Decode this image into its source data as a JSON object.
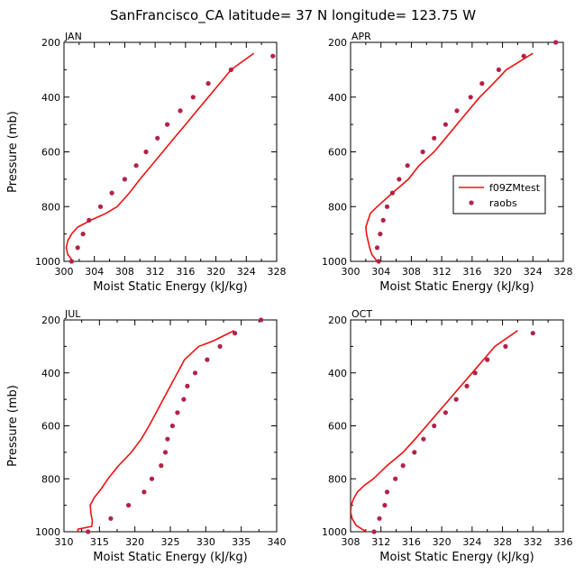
{
  "suptitle": "SanFrancisco_CA  latitude= 37 N longitude= 123.75 W",
  "colors": {
    "model": "#ee1111",
    "obs": "#b22248"
  },
  "legend": {
    "model": "f09ZMtest",
    "obs": "raobs"
  },
  "chart_data": [
    {
      "type": "line",
      "label": "JAN",
      "xlabel": "Moist Static Energy (kJ/kg)",
      "ylabel": "Pressure (mb)",
      "xlim": [
        300,
        328
      ],
      "ylim": [
        1000,
        200
      ],
      "xticks": [
        300,
        304,
        308,
        312,
        316,
        320,
        324,
        328
      ],
      "yticks": [
        200,
        400,
        600,
        800,
        1000
      ],
      "series": [
        {
          "name": "f09ZMtest",
          "style": "line",
          "points": [
            [
              302.0,
              1010
            ],
            [
              301.2,
              1000
            ],
            [
              300.5,
              975
            ],
            [
              300.3,
              950
            ],
            [
              300.5,
              925
            ],
            [
              301.0,
              900
            ],
            [
              301.8,
              875
            ],
            [
              303.5,
              850
            ],
            [
              305.5,
              825
            ],
            [
              307.0,
              800
            ],
            [
              308.6,
              750
            ],
            [
              310.0,
              700
            ],
            [
              311.5,
              650
            ],
            [
              313.0,
              600
            ],
            [
              314.5,
              550
            ],
            [
              316.0,
              500
            ],
            [
              317.5,
              450
            ],
            [
              319.0,
              400
            ],
            [
              320.5,
              350
            ],
            [
              322.0,
              300
            ],
            [
              325.0,
              240
            ]
          ]
        },
        {
          "name": "raobs",
          "style": "markers",
          "points": [
            [
              301.0,
              1000
            ],
            [
              301.8,
              950
            ],
            [
              302.5,
              900
            ],
            [
              303.3,
              850
            ],
            [
              304.8,
              800
            ],
            [
              306.3,
              750
            ],
            [
              308.0,
              700
            ],
            [
              309.5,
              650
            ],
            [
              310.8,
              600
            ],
            [
              312.3,
              550
            ],
            [
              313.6,
              500
            ],
            [
              315.3,
              450
            ],
            [
              317.0,
              400
            ],
            [
              319.0,
              350
            ],
            [
              322.0,
              300
            ],
            [
              327.5,
              250
            ]
          ]
        }
      ]
    },
    {
      "type": "line",
      "label": "APR",
      "xlabel": "Moist Static Energy (kJ/kg)",
      "ylabel": "",
      "xlim": [
        300,
        328
      ],
      "ylim": [
        1000,
        200
      ],
      "xticks": [
        300,
        304,
        308,
        312,
        316,
        320,
        324,
        328
      ],
      "yticks": [
        200,
        400,
        600,
        800,
        1000
      ],
      "legend_visible": true,
      "series": [
        {
          "name": "f09ZMtest",
          "style": "line",
          "points": [
            [
              304.0,
              1010
            ],
            [
              303.5,
              1000
            ],
            [
              302.8,
              975
            ],
            [
              302.5,
              950
            ],
            [
              302.3,
              925
            ],
            [
              302.1,
              900
            ],
            [
              302.0,
              875
            ],
            [
              302.3,
              850
            ],
            [
              302.6,
              825
            ],
            [
              303.5,
              800
            ],
            [
              305.5,
              750
            ],
            [
              307.6,
              700
            ],
            [
              309.0,
              650
            ],
            [
              311.0,
              600
            ],
            [
              312.5,
              550
            ],
            [
              314.0,
              500
            ],
            [
              315.5,
              450
            ],
            [
              317.0,
              400
            ],
            [
              318.8,
              350
            ],
            [
              320.5,
              300
            ],
            [
              324.0,
              240
            ]
          ]
        },
        {
          "name": "raobs",
          "style": "markers",
          "points": [
            [
              303.7,
              1000
            ],
            [
              303.5,
              950
            ],
            [
              303.9,
              900
            ],
            [
              304.3,
              850
            ],
            [
              304.8,
              800
            ],
            [
              305.5,
              750
            ],
            [
              306.4,
              700
            ],
            [
              307.5,
              650
            ],
            [
              309.5,
              600
            ],
            [
              311.0,
              550
            ],
            [
              312.5,
              500
            ],
            [
              314.0,
              450
            ],
            [
              315.8,
              400
            ],
            [
              317.3,
              350
            ],
            [
              319.5,
              300
            ],
            [
              322.8,
              250
            ],
            [
              327.0,
              200
            ]
          ]
        }
      ]
    },
    {
      "type": "line",
      "label": "JUL",
      "xlabel": "Moist Static Energy (kJ/kg)",
      "ylabel": "Pressure (mb)",
      "xlim": [
        310,
        340
      ],
      "ylim": [
        1000,
        200
      ],
      "xticks": [
        310,
        315,
        320,
        325,
        330,
        335,
        340
      ],
      "yticks": [
        200,
        400,
        600,
        800,
        1000
      ],
      "series": [
        {
          "name": "f09ZMtest",
          "style": "line",
          "points": [
            [
              311.8,
              1010
            ],
            [
              312.0,
              990
            ],
            [
              313.9,
              980
            ],
            [
              314.0,
              960
            ],
            [
              313.8,
              930
            ],
            [
              313.7,
              900
            ],
            [
              314.3,
              870
            ],
            [
              315.2,
              840
            ],
            [
              316.2,
              800
            ],
            [
              317.7,
              750
            ],
            [
              319.5,
              700
            ],
            [
              320.9,
              650
            ],
            [
              322.0,
              600
            ],
            [
              323.0,
              550
            ],
            [
              324.0,
              500
            ],
            [
              325.0,
              450
            ],
            [
              326.0,
              400
            ],
            [
              327.0,
              350
            ],
            [
              329.0,
              300
            ],
            [
              331.0,
              280
            ],
            [
              334.0,
              240
            ]
          ]
        },
        {
          "name": "raobs",
          "style": "markers",
          "points": [
            [
              313.4,
              1000
            ],
            [
              316.6,
              950
            ],
            [
              319.1,
              900
            ],
            [
              321.3,
              850
            ],
            [
              322.4,
              800
            ],
            [
              323.7,
              750
            ],
            [
              324.3,
              700
            ],
            [
              324.6,
              650
            ],
            [
              325.3,
              600
            ],
            [
              326.0,
              550
            ],
            [
              326.9,
              500
            ],
            [
              327.4,
              450
            ],
            [
              328.5,
              400
            ],
            [
              330.2,
              350
            ],
            [
              332.0,
              300
            ],
            [
              334.1,
              250
            ],
            [
              337.8,
              200
            ]
          ]
        }
      ]
    },
    {
      "type": "line",
      "label": "OCT",
      "xlabel": "Moist Static Energy (kJ/kg)",
      "ylabel": "",
      "xlim": [
        308,
        336
      ],
      "ylim": [
        1000,
        200
      ],
      "xticks": [
        308,
        312,
        316,
        320,
        324,
        328,
        332,
        336
      ],
      "yticks": [
        200,
        400,
        600,
        800,
        1000
      ],
      "series": [
        {
          "name": "f09ZMtest",
          "style": "line",
          "points": [
            [
              310.7,
              1010
            ],
            [
              309.5,
              990
            ],
            [
              308.7,
              975
            ],
            [
              308.2,
              950
            ],
            [
              308.0,
              925
            ],
            [
              308.1,
              900
            ],
            [
              308.4,
              875
            ],
            [
              308.9,
              850
            ],
            [
              309.8,
              825
            ],
            [
              311.0,
              800
            ],
            [
              312.8,
              750
            ],
            [
              314.9,
              700
            ],
            [
              316.5,
              650
            ],
            [
              318.0,
              600
            ],
            [
              319.5,
              550
            ],
            [
              321.0,
              500
            ],
            [
              322.5,
              450
            ],
            [
              324.0,
              400
            ],
            [
              325.5,
              350
            ],
            [
              327.0,
              300
            ],
            [
              330.0,
              240
            ]
          ]
        },
        {
          "name": "raobs",
          "style": "markers",
          "points": [
            [
              311.1,
              1000
            ],
            [
              311.8,
              950
            ],
            [
              312.5,
              900
            ],
            [
              312.8,
              850
            ],
            [
              313.9,
              800
            ],
            [
              314.9,
              750
            ],
            [
              316.4,
              700
            ],
            [
              317.6,
              650
            ],
            [
              319.0,
              600
            ],
            [
              320.5,
              550
            ],
            [
              321.9,
              500
            ],
            [
              323.3,
              450
            ],
            [
              324.4,
              400
            ],
            [
              326.0,
              350
            ],
            [
              328.4,
              300
            ],
            [
              332.0,
              250
            ]
          ]
        }
      ]
    }
  ]
}
